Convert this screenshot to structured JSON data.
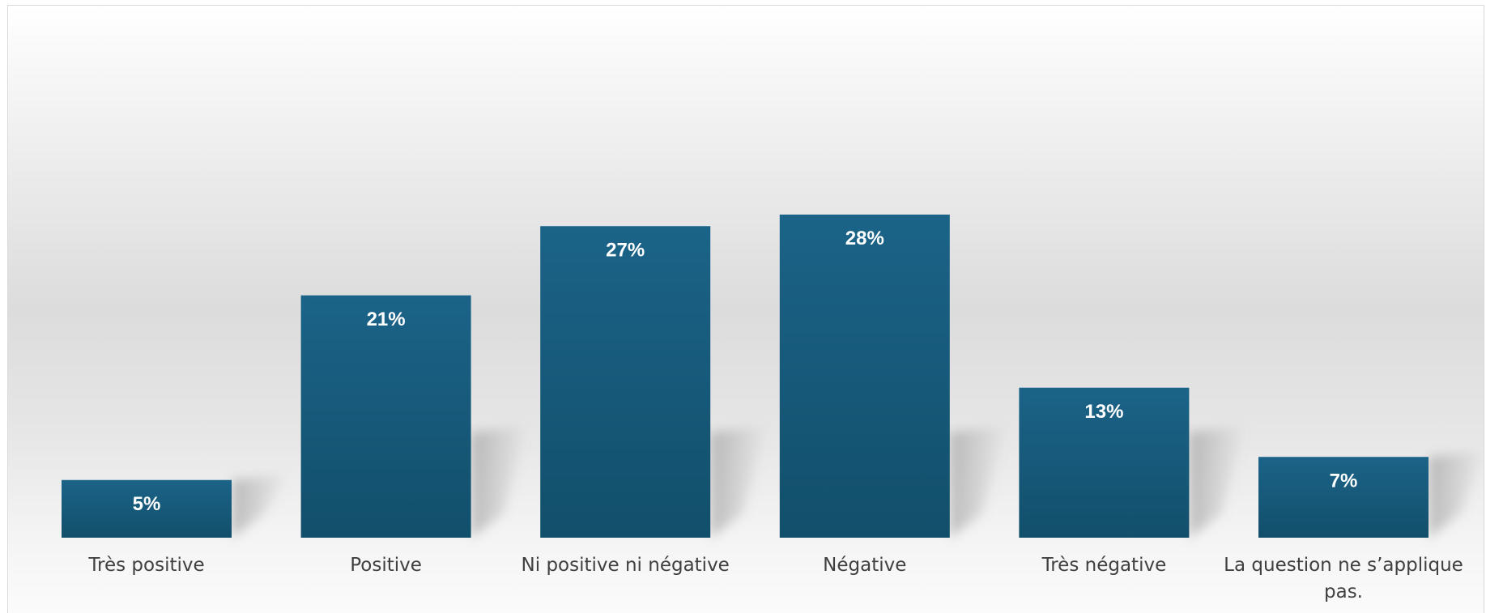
{
  "chart_data": {
    "type": "bar",
    "categories": [
      "Très positive",
      "Positive",
      "Ni positive ni négative",
      "Négative",
      "Très négative",
      "La question ne s’applique pas."
    ],
    "values": [
      5,
      21,
      27,
      28,
      13,
      7
    ],
    "value_suffix": "%",
    "ylim": [
      0,
      30
    ],
    "title": "",
    "xlabel": "",
    "ylabel": "",
    "grid": false,
    "legend": "none",
    "data_labels": "inside-end",
    "colors": {
      "bar_top": "#1b6388",
      "bar_bottom": "#124f6b",
      "data_label": "#ffffff",
      "category_label": "#404040"
    }
  }
}
